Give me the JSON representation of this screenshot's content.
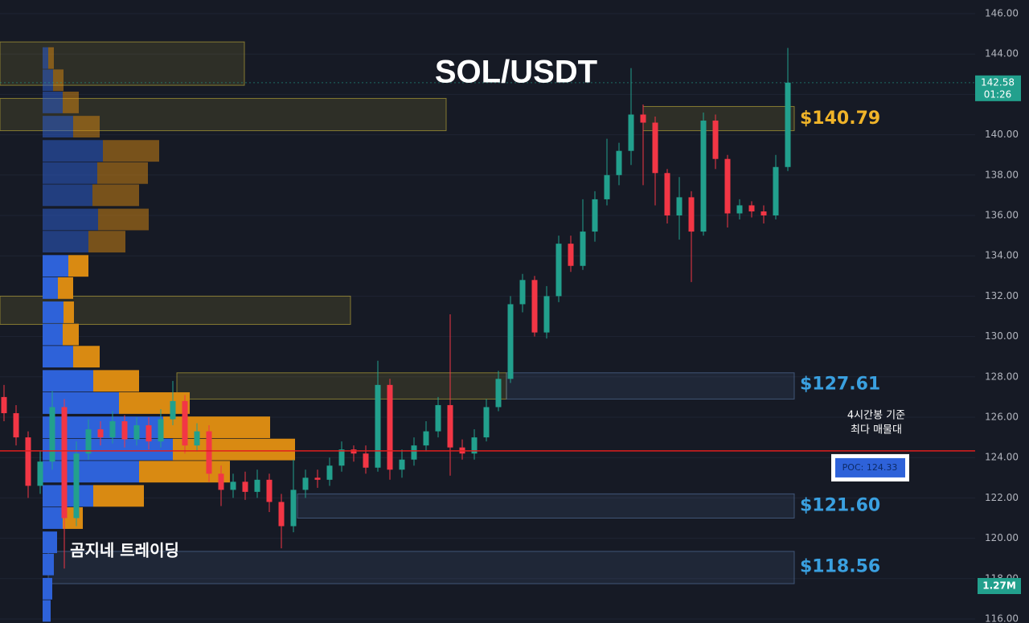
{
  "chart_data": {
    "type": "candlestick",
    "title": "SOL/USDT",
    "watermark": "곰지네 트레이딩",
    "ylim": [
      116,
      146
    ],
    "yticks": [
      {
        "value": 116,
        "label": "116.00"
      },
      {
        "value": 118,
        "label": "118.00"
      },
      {
        "value": 120,
        "label": "120.00"
      },
      {
        "value": 122,
        "label": "122.00"
      },
      {
        "value": 124,
        "label": "124.00"
      },
      {
        "value": 126,
        "label": "126.00"
      },
      {
        "value": 128,
        "label": "128.00"
      },
      {
        "value": 130,
        "label": "130.00"
      },
      {
        "value": 132,
        "label": "132.00"
      },
      {
        "value": 134,
        "label": "134.00"
      },
      {
        "value": 136,
        "label": "136.00"
      },
      {
        "value": 138,
        "label": "138.00"
      },
      {
        "value": 140,
        "label": "140.00"
      },
      {
        "value": 142,
        "label": "142.00"
      },
      {
        "value": 144,
        "label": "144.00"
      },
      {
        "value": 146,
        "label": "146.00"
      }
    ],
    "grid": true,
    "up_color": "#22a08d",
    "down_color": "#f23645",
    "open": [
      127.0,
      126.2,
      125.0,
      122.6,
      123.8,
      126.5,
      121.0,
      124.2,
      125.4,
      125.0,
      125.8,
      124.9,
      125.6,
      124.8,
      125.9,
      126.8,
      124.6,
      125.3,
      123.2,
      122.4,
      122.8,
      122.3,
      122.9,
      121.8,
      120.6,
      122.4,
      123.0,
      122.9,
      123.6,
      124.4,
      124.2,
      123.5,
      127.6,
      123.4,
      123.9,
      124.6,
      125.3,
      126.6,
      124.5,
      124.2,
      125.0,
      126.5,
      127.9,
      131.6,
      132.8,
      130.2,
      132.0,
      134.6,
      133.5,
      135.2,
      136.8,
      138.0,
      139.2,
      141.0,
      140.6,
      138.1,
      136.0,
      136.9,
      135.2,
      140.7,
      138.8,
      136.1,
      136.5,
      136.2,
      136.0,
      138.4
    ],
    "high": [
      127.6,
      126.6,
      125.3,
      124.3,
      127.3,
      126.9,
      124.8,
      125.9,
      125.8,
      126.3,
      126.1,
      126.0,
      126.0,
      126.4,
      127.8,
      127.1,
      125.7,
      125.6,
      123.6,
      123.2,
      123.3,
      123.4,
      123.2,
      122.2,
      123.9,
      123.4,
      123.4,
      124.0,
      124.8,
      124.6,
      124.6,
      128.8,
      127.9,
      124.4,
      125.0,
      125.8,
      127.0,
      131.1,
      124.9,
      125.4,
      126.9,
      128.3,
      132.0,
      133.1,
      133.0,
      132.5,
      135.0,
      135.0,
      136.8,
      137.2,
      139.8,
      139.6,
      143.3,
      141.5,
      140.9,
      138.3,
      137.9,
      137.2,
      141.1,
      141.0,
      139.0,
      136.8,
      136.7,
      136.5,
      139.0,
      144.3
    ],
    "low": [
      125.8,
      124.6,
      122.0,
      122.2,
      123.4,
      118.5,
      120.6,
      123.9,
      124.6,
      124.7,
      124.5,
      124.6,
      124.4,
      124.5,
      125.6,
      124.2,
      124.3,
      122.8,
      121.6,
      122.0,
      121.9,
      122.0,
      121.3,
      119.5,
      120.3,
      122.0,
      122.5,
      122.6,
      123.3,
      123.8,
      123.2,
      123.3,
      122.9,
      123.0,
      123.6,
      124.3,
      125.0,
      123.1,
      123.9,
      123.9,
      124.8,
      126.3,
      127.7,
      131.2,
      130.0,
      129.9,
      131.7,
      133.2,
      133.3,
      134.7,
      136.5,
      137.5,
      138.5,
      137.5,
      136.5,
      135.6,
      134.8,
      132.7,
      135.0,
      138.3,
      135.4,
      135.8,
      135.9,
      135.6,
      135.8,
      138.2
    ],
    "close": [
      126.2,
      125.0,
      122.6,
      123.8,
      126.5,
      121.0,
      124.2,
      125.4,
      125.0,
      125.8,
      124.9,
      125.6,
      124.8,
      125.9,
      126.8,
      124.6,
      125.3,
      123.2,
      122.4,
      122.8,
      122.3,
      122.9,
      121.8,
      120.6,
      122.4,
      123.0,
      122.9,
      123.6,
      124.4,
      124.2,
      123.5,
      127.6,
      123.4,
      123.9,
      124.6,
      125.3,
      126.6,
      124.5,
      124.2,
      125.0,
      126.5,
      127.9,
      131.6,
      132.8,
      130.2,
      132.0,
      134.6,
      133.5,
      135.2,
      136.8,
      138.0,
      139.2,
      141.0,
      140.6,
      138.1,
      136.0,
      136.9,
      135.2,
      140.7,
      138.8,
      136.1,
      136.5,
      136.2,
      136.0,
      138.4,
      142.58
    ],
    "profile": {
      "levels": [
        143.8,
        142.7,
        141.6,
        140.4,
        139.2,
        138.1,
        137.0,
        135.8,
        134.7,
        133.5,
        132.4,
        131.2,
        130.1,
        129.0,
        127.8,
        126.7,
        125.5,
        124.4,
        123.3,
        122.1,
        121.0,
        119.8,
        118.7,
        117.5,
        116.4
      ],
      "buy": [
        7,
        13,
        25,
        38,
        75,
        68,
        62,
        69,
        57,
        32,
        19,
        26,
        25,
        38,
        63,
        95,
        150,
        162,
        120,
        63,
        25,
        18,
        14,
        12,
        10
      ],
      "sell": [
        7,
        13,
        20,
        33,
        70,
        63,
        58,
        63,
        46,
        25,
        19,
        13,
        20,
        33,
        57,
        88,
        133,
        152,
        113,
        63,
        25,
        0,
        0,
        0,
        0
      ],
      "buy_color": "#2e62d9",
      "sell_color": "#d98a12"
    },
    "zones": [
      {
        "low": 142.45,
        "high": 144.6,
        "color": "#c8b43a"
      },
      {
        "low": 140.2,
        "high": 141.8,
        "color": "#c8b43a"
      },
      {
        "low": 130.6,
        "high": 132.0,
        "color": "#c8b43a"
      },
      {
        "low": 126.9,
        "high": 128.2,
        "color": "#c8b43a"
      },
      {
        "low": 126.9,
        "high": 128.2,
        "color": "#5a7aa8"
      },
      {
        "low": 121.0,
        "high": 122.2,
        "color": "#5a7aa8"
      },
      {
        "low": 117.75,
        "high": 119.35,
        "color": "#5a7aa8"
      },
      {
        "low": 140.2,
        "high": 141.4,
        "color": "#c8b43a"
      }
    ],
    "level_labels": [
      {
        "value": 140.79,
        "label": "$140.79",
        "color": "#f0b429"
      },
      {
        "value": 127.61,
        "label": "$127.61",
        "color": "#3aa0e0"
      },
      {
        "value": 121.6,
        "label": "$121.60",
        "color": "#3aa0e0"
      },
      {
        "value": 118.56,
        "label": "$118.56",
        "color": "#3aa0e0"
      }
    ],
    "poc": {
      "value": 124.33,
      "label": "POC: 124.33",
      "color": "#e01e1e",
      "note": [
        "4시간봉 기준",
        "최다 매물대"
      ]
    },
    "last": {
      "value": 142.58,
      "label": "142.58",
      "timer": "01:26"
    },
    "volume_label": "1.27M"
  }
}
